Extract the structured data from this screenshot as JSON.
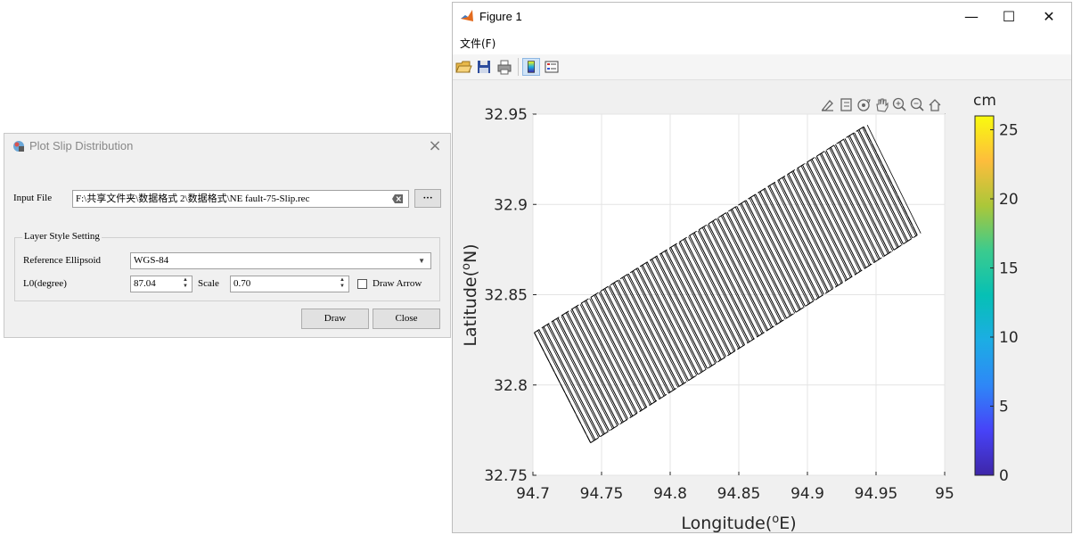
{
  "dialog": {
    "title": "Plot Slip Distribution",
    "input_file_label": "Input File",
    "input_file_value": "F:\\共享文件夹\\数据格式 2\\数据格式\\NE fault-75-Slip.rec",
    "browse_label": "···",
    "group_title": "Layer Style Setting",
    "ellipsoid_label": "Reference Ellipsoid",
    "ellipsoid_value": "WGS-84",
    "l0_label": "L0(degree)",
    "l0_value": "87.04",
    "scale_label": "Scale",
    "scale_value": "0.70",
    "draw_arrow_label": "Draw Arrow",
    "draw_arrow_checked": false,
    "draw_label": "Draw",
    "close_label": "Close"
  },
  "figure": {
    "title": "Figure 1",
    "menu": [
      "文件(F)"
    ],
    "toolbar_icons": [
      "open-icon",
      "save-icon",
      "print-icon",
      "colorbar-toggle-icon",
      "legend-toggle-icon"
    ],
    "axes_toolbar_icons": [
      "brush-icon",
      "datatip-icon",
      "rotate-icon",
      "pan-icon",
      "zoom-in-icon",
      "zoom-out-icon",
      "home-icon"
    ]
  },
  "chart_data": {
    "type": "line",
    "xlabel": "Longitude(°E)",
    "ylabel": "Latitude(°N)",
    "xlim": [
      94.7,
      95.0
    ],
    "ylim": [
      32.75,
      32.95
    ],
    "xticks": [
      "94.7",
      "94.75",
      "94.8",
      "94.85",
      "94.9",
      "94.95",
      "95"
    ],
    "yticks": [
      "32.75",
      "32.8",
      "32.85",
      "32.9",
      "32.95"
    ],
    "grid": true,
    "fault_outline": {
      "lon": [
        94.701,
        94.742,
        94.98,
        94.941
      ],
      "lat": [
        32.829,
        32.768,
        32.883,
        32.943
      ]
    },
    "line_count": 70,
    "line_color": "#000000",
    "colorbar": {
      "label": "cm",
      "range": [
        0,
        26
      ],
      "ticks": [
        "0",
        "5",
        "10",
        "15",
        "20",
        "25"
      ],
      "colormap": [
        "#3e26a8",
        "#4743f8",
        "#2e87f7",
        "#1cade4",
        "#06c0b5",
        "#3bcb8e",
        "#abc739",
        "#fdbd3c",
        "#f9fb0e"
      ]
    }
  }
}
